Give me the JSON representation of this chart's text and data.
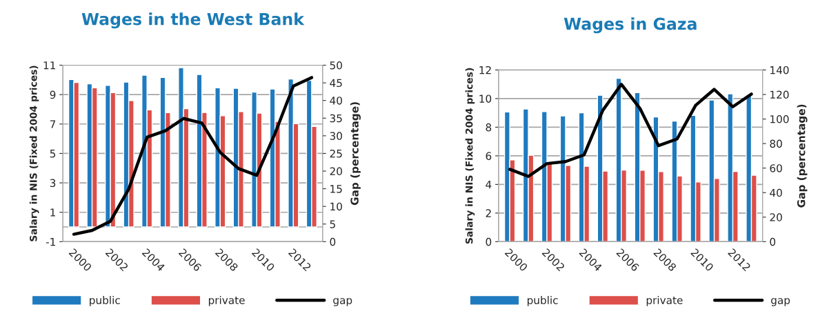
{
  "chart_data": [
    {
      "type": "bar",
      "title": "Wages in the West Bank",
      "ylabel": "Salary in NIS (Fixed 2004 prices)",
      "y2label": "Gap (percentage)",
      "categories": [
        "2000",
        null,
        "2002",
        null,
        "2004",
        null,
        "2006",
        null,
        "2008",
        null,
        "2010",
        null,
        "2012",
        null
      ],
      "series": [
        {
          "name": "public",
          "color": "#1f7bbf",
          "values": [
            10.02,
            9.73,
            9.63,
            9.85,
            10.32,
            10.17,
            10.83,
            10.37,
            9.46,
            9.43,
            9.17,
            9.38,
            10.06,
            9.96
          ]
        },
        {
          "name": "private",
          "color": "#dd4f4a",
          "values": [
            9.83,
            9.46,
            9.13,
            8.59,
            7.96,
            7.77,
            8.04,
            7.78,
            7.56,
            7.84,
            7.74,
            7.18,
            7.02,
            6.84
          ]
        },
        {
          "name": "gap",
          "type": "line",
          "axis": "y2",
          "color": "#000000",
          "values": [
            2.1,
            3.2,
            5.8,
            14.9,
            29.6,
            31.4,
            34.9,
            33.6,
            25.3,
            20.7,
            18.8,
            30.7,
            44.1,
            46.5
          ]
        }
      ],
      "ylim": [
        -1,
        11
      ],
      "yticks": [
        -1,
        1,
        3,
        5,
        7,
        9,
        11
      ],
      "y2lim": [
        0,
        50
      ],
      "y2ticks": [
        0,
        5,
        10,
        15,
        20,
        25,
        30,
        35,
        40,
        45,
        50
      ],
      "grid": "y",
      "legend": "bottom",
      "marker": "none",
      "line_style": "solid"
    },
    {
      "type": "bar",
      "title": "Wages in Gaza",
      "ylabel": "Salary in NIS (Fixed 2004 prices)",
      "y2label": "Gap (percentage)",
      "categories": [
        "2000",
        null,
        "2002",
        null,
        "2004",
        null,
        "2006",
        null,
        "2008",
        null,
        "2010",
        null,
        "2012",
        null
      ],
      "series": [
        {
          "name": "public",
          "color": "#1f7bbf",
          "values": [
            9.07,
            9.27,
            9.09,
            8.79,
            9.0,
            10.23,
            11.41,
            10.41,
            8.71,
            8.43,
            8.83,
            9.9,
            10.33,
            10.26
          ]
        },
        {
          "name": "private",
          "color": "#dd4f4a",
          "values": [
            5.71,
            6.04,
            5.57,
            5.33,
            5.27,
            4.93,
            5.0,
            4.99,
            4.9,
            4.59,
            4.17,
            4.41,
            4.91,
            4.64
          ]
        },
        {
          "name": "gap",
          "type": "line",
          "axis": "y2",
          "color": "#000000",
          "values": [
            59,
            53.2,
            63.7,
            65.3,
            70.8,
            107,
            128.3,
            108.7,
            78.3,
            83.7,
            111.2,
            124.2,
            110,
            120.3
          ]
        }
      ],
      "ylim": [
        0,
        12
      ],
      "yticks": [
        0,
        2,
        4,
        6,
        8,
        10,
        12
      ],
      "y2lim": [
        0,
        140
      ],
      "y2ticks": [
        0,
        20,
        40,
        60,
        80,
        100,
        120,
        140
      ],
      "grid": "y",
      "legend": "bottom",
      "marker": "none",
      "line_style": "solid"
    }
  ]
}
